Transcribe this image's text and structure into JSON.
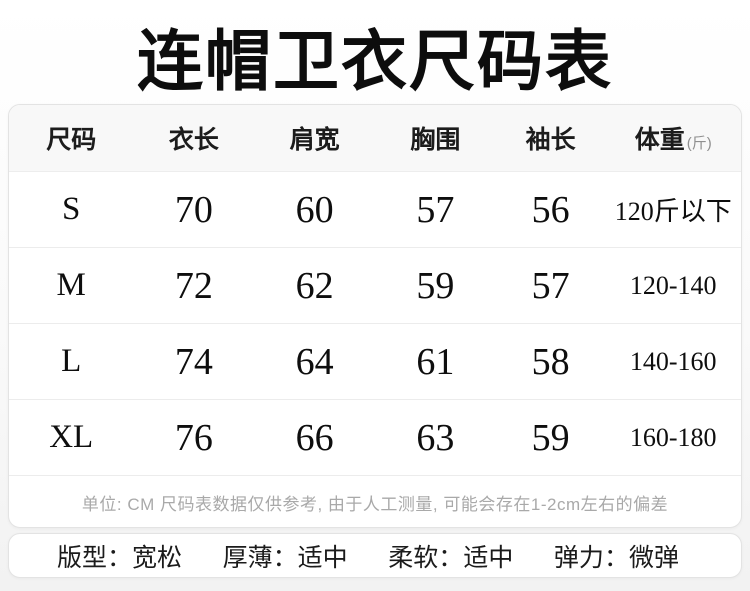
{
  "page": {
    "title": "连帽卫衣尺码表"
  },
  "colors": {
    "text": "#111111",
    "note_text": "#a9a9a9",
    "header_bg": "#f8f8f8",
    "card_border": "#e3e3e3",
    "row_divider": "#ececec"
  },
  "size_table": {
    "headers": [
      "尺码",
      "衣长",
      "肩宽",
      "胸围",
      "袖长",
      "体重"
    ],
    "weight_unit": "(斤)",
    "rows": [
      {
        "size": "S",
        "length": "70",
        "shoulder": "60",
        "chest": "57",
        "sleeve": "56",
        "weight": "120斤以下"
      },
      {
        "size": "M",
        "length": "72",
        "shoulder": "62",
        "chest": "59",
        "sleeve": "57",
        "weight": "120-140"
      },
      {
        "size": "L",
        "length": "74",
        "shoulder": "64",
        "chest": "61",
        "sleeve": "58",
        "weight": "140-160"
      },
      {
        "size": "XL",
        "length": "76",
        "shoulder": "66",
        "chest": "63",
        "sleeve": "59",
        "weight": "160-180"
      }
    ],
    "note": "单位: CM 尺码表数据仅供参考, 由于人工测量, 可能会存在1-2cm左右的偏差"
  },
  "attributes": {
    "separator": "：",
    "items": [
      {
        "label": "版型",
        "value": "宽松"
      },
      {
        "label": "厚薄",
        "value": "适中"
      },
      {
        "label": "柔软",
        "value": "适中"
      },
      {
        "label": "弹力",
        "value": "微弹"
      }
    ]
  }
}
